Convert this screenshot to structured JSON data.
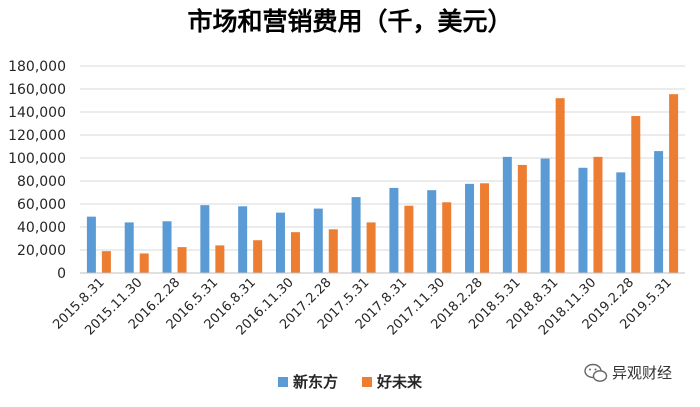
{
  "chart_data": {
    "type": "bar",
    "title": "市场和营销费用（千，美元）",
    "xlabel": "",
    "ylabel": "",
    "categories": [
      "2015.8.31",
      "2015.11.30",
      "2016.2.28",
      "2016.5.31",
      "2016.8.31",
      "2016.11.30",
      "2017.2.28",
      "2017.5.31",
      "2017.8.31",
      "2017.11.30",
      "2018.2.28",
      "2018.5.31",
      "2018.8.31",
      "2018.11.30",
      "2019.2.28",
      "2019.5.31"
    ],
    "series": [
      {
        "name": "新东方",
        "color": "#5B9BD5",
        "values": [
          49000,
          44000,
          45000,
          59000,
          58000,
          52500,
          56000,
          66000,
          74000,
          72000,
          77500,
          101000,
          99500,
          91500,
          87500,
          106000
        ]
      },
      {
        "name": "好未来",
        "color": "#ED7D31",
        "values": [
          19000,
          17000,
          22500,
          24000,
          28500,
          35500,
          38000,
          44000,
          58500,
          61500,
          78000,
          94000,
          152000,
          101000,
          136500,
          155500
        ]
      }
    ],
    "ylim": [
      0,
      180000
    ],
    "yticks": [
      "0",
      "20,000",
      "40,000",
      "60,000",
      "80,000",
      "100,000",
      "120,000",
      "140,000",
      "160,000",
      "180,000"
    ],
    "grid": true,
    "legend_position": "bottom"
  },
  "watermark": {
    "text": "异观财经",
    "icon": "wechat-icon"
  }
}
